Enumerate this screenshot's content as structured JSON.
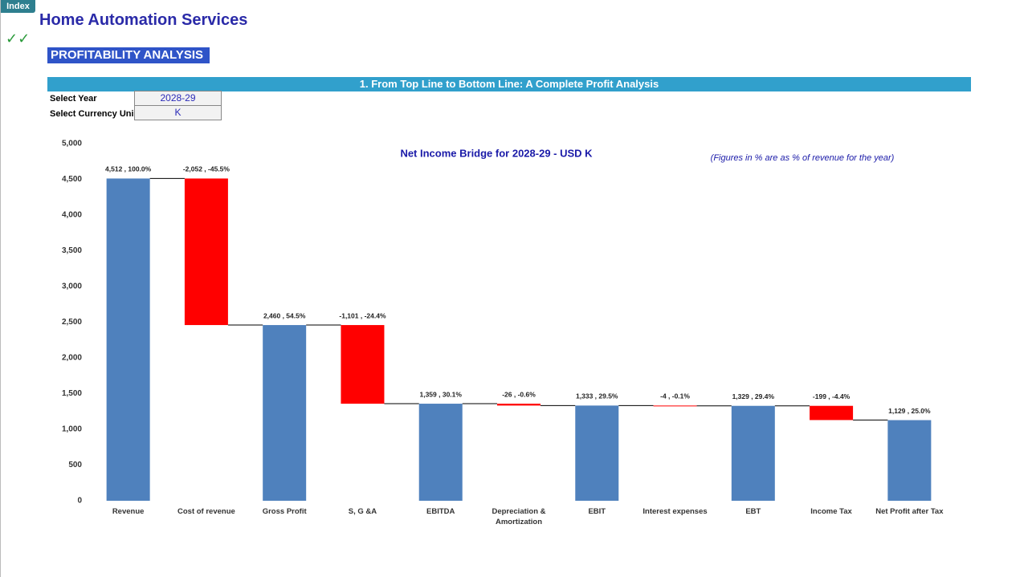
{
  "index_button": "Index",
  "app_title": "Home Automation Services",
  "section_title": "PROFITABILITY ANALYSIS",
  "banner": "1. From Top Line to Bottom Line: A Complete Profit Analysis",
  "inputs": [
    {
      "label": "Select Year",
      "value": "2028-29"
    },
    {
      "label": "Select Currency Uni",
      "value": "K"
    }
  ],
  "chart_data": {
    "type": "waterfall",
    "title": "Net Income Bridge for 2028-29 - USD K",
    "annotation": "(Figures in % are as % of revenue for the year)",
    "categories": [
      "Revenue",
      "Cost of revenue",
      "Gross Profit",
      "S, G &A",
      "EBITDA",
      "Depreciation & Amortization",
      "EBIT",
      "Interest expenses",
      "EBT",
      "Income Tax",
      "Net Profit after Tax"
    ],
    "values": [
      4512,
      -2052,
      2460,
      -1101,
      1359,
      -26,
      1333,
      -4,
      1329,
      -199,
      1129
    ],
    "value_labels": [
      "4,512 , 100.0%",
      "-2,052 , -45.5%",
      "2,460 , 54.5%",
      "-1,101 , -24.4%",
      "1,359 , 30.1%",
      "-26 , -0.6%",
      "1,333 , 29.5%",
      "-4 , -0.1%",
      "1,329 , 29.4%",
      "-199 , -4.4%",
      "1,129 , 25.0%"
    ],
    "colors": [
      "#4f81bd",
      "#ff0000",
      "#4f81bd",
      "#ff0000",
      "#4f81bd",
      "#ff0000",
      "#4f81bd",
      "#ff0000",
      "#4f81bd",
      "#ff0000",
      "#4f81bd"
    ],
    "ylim": [
      0,
      5000
    ],
    "yticks": [
      0,
      {
        "value": 500,
        "label": "500"
      },
      {
        "value": 1000,
        "label": "1,000"
      },
      {
        "value": 1500,
        "label": "1,500"
      },
      {
        "value": 2000,
        "label": "2,000"
      },
      {
        "value": 2500,
        "label": "2,500"
      },
      {
        "value": 3000,
        "label": "3,000"
      },
      {
        "value": 3500,
        "label": "3,500"
      },
      {
        "value": 4000,
        "label": "4,000"
      },
      {
        "value": 4500,
        "label": "4,500"
      },
      {
        "value": 5000,
        "label": "5,000"
      }
    ],
    "grid": false
  }
}
